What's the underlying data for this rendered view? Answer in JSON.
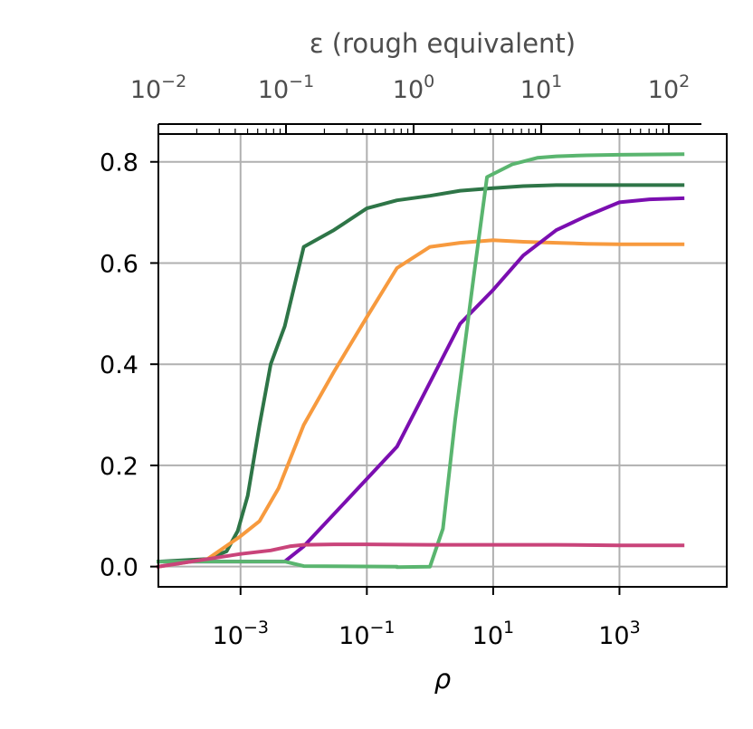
{
  "chart_data": {
    "type": "line",
    "xscale": "log",
    "xlim": [
      5e-05,
      50000
    ],
    "ylim": [
      -0.04,
      0.855
    ],
    "grid": true,
    "xlabel": "ρ",
    "ylabel": "",
    "xticks": [
      {
        "value": 0.001,
        "base": "10",
        "exp": "−3"
      },
      {
        "value": 0.1,
        "base": "10",
        "exp": "−1"
      },
      {
        "value": 10,
        "base": "10",
        "exp": "1"
      },
      {
        "value": 1000,
        "base": "10",
        "exp": "3"
      }
    ],
    "yticks": [
      {
        "value": 0.0,
        "label": "0.0"
      },
      {
        "value": 0.2,
        "label": "0.2"
      },
      {
        "value": 0.4,
        "label": "0.4"
      },
      {
        "value": 0.6,
        "label": "0.6"
      },
      {
        "value": 0.8,
        "label": "0.8"
      }
    ],
    "secondary_x": {
      "label": "ε (rough equivalent)",
      "scale": "log",
      "ticks": [
        {
          "value": 0.01,
          "base": "10",
          "exp": "−2"
        },
        {
          "value": 0.1,
          "base": "10",
          "exp": "−1"
        },
        {
          "value": 1,
          "base": "10",
          "exp": "0"
        },
        {
          "value": 10,
          "base": "10",
          "exp": "1"
        },
        {
          "value": 100,
          "base": "10",
          "exp": "2"
        }
      ],
      "lim": [
        0.01,
        180
      ]
    },
    "series": [
      {
        "color": "#2e7547",
        "x": [
          5e-05,
          0.0003,
          0.0006,
          0.0009,
          0.0013,
          0.002,
          0.003,
          0.005,
          0.01,
          0.03,
          0.1,
          0.3,
          1,
          3,
          10,
          30,
          100,
          300,
          1000,
          3000,
          10000
        ],
        "y": [
          0.01,
          0.015,
          0.03,
          0.07,
          0.14,
          0.28,
          0.4,
          0.475,
          0.632,
          0.665,
          0.708,
          0.724,
          0.733,
          0.743,
          0.748,
          0.752,
          0.754,
          0.754,
          0.754,
          0.754,
          0.754
        ]
      },
      {
        "color": "#f79a3e",
        "x": [
          5e-05,
          0.0003,
          0.001,
          0.002,
          0.004,
          0.01,
          0.03,
          0.1,
          0.3,
          1,
          3,
          10,
          30,
          100,
          300,
          1000,
          10000
        ],
        "y": [
          0.0,
          0.015,
          0.06,
          0.09,
          0.155,
          0.28,
          0.385,
          0.493,
          0.59,
          0.632,
          0.64,
          0.645,
          0.642,
          0.64,
          0.638,
          0.637,
          0.637
        ]
      },
      {
        "color": "#7b0eb0",
        "x": [
          5e-05,
          0.005,
          0.01,
          0.3,
          3,
          10,
          30,
          100,
          300,
          1000,
          3000,
          10000
        ],
        "y": [
          0.01,
          0.01,
          0.04,
          0.237,
          0.48,
          0.547,
          0.615,
          0.665,
          0.693,
          0.72,
          0.726,
          0.728
        ]
      },
      {
        "color": "#5ab56f",
        "x": [
          5e-05,
          0.005,
          0.01,
          0.3,
          0.3,
          1,
          1.6,
          2.5,
          5,
          8,
          20,
          50,
          100,
          300,
          1000,
          10000
        ],
        "y": [
          0.01,
          0.01,
          0.001,
          0.0,
          -0.001,
          0.0,
          0.075,
          0.29,
          0.58,
          0.77,
          0.795,
          0.808,
          0.811,
          0.813,
          0.814,
          0.815
        ]
      },
      {
        "color": "#c9447a",
        "x": [
          5e-05,
          0.001,
          0.003,
          0.006,
          0.01,
          0.03,
          0.1,
          1,
          10,
          100,
          1000,
          10000
        ],
        "y": [
          0.0,
          0.025,
          0.032,
          0.04,
          0.043,
          0.044,
          0.044,
          0.043,
          0.043,
          0.043,
          0.042,
          0.042
        ]
      }
    ]
  }
}
